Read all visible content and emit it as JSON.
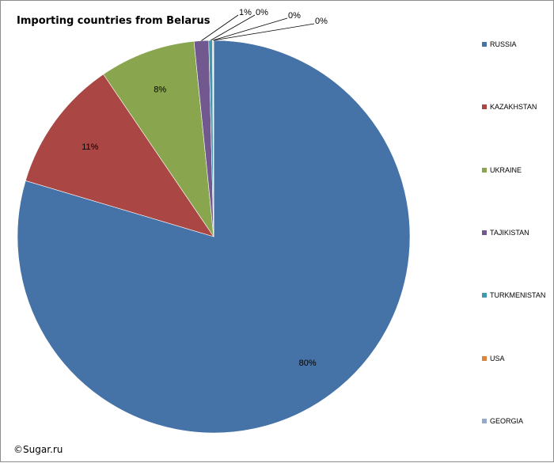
{
  "chart_data": {
    "type": "pie",
    "title": "Importing countries from Belarus",
    "slices": [
      {
        "name": "RUSSIA",
        "value": 79.6,
        "label": "80%",
        "color": "#4572A7"
      },
      {
        "name": "KAZAKHSTAN",
        "value": 10.9,
        "label": "11%",
        "color": "#AA4643"
      },
      {
        "name": "UKRAINE",
        "value": 7.9,
        "label": "8%",
        "color": "#89A54E"
      },
      {
        "name": "TAJIKISTAN",
        "value": 1.2,
        "label": "1%",
        "color": "#71588F"
      },
      {
        "name": "TURKMENISTAN",
        "value": 0.3,
        "label": "0%",
        "color": "#4198AF"
      },
      {
        "name": "USA",
        "value": 0.05,
        "label": "0%",
        "color": "#DB843D"
      },
      {
        "name": "GEORGIA",
        "value": 0.05,
        "label": "0%",
        "color": "#93A9CF"
      }
    ],
    "legend_position": "right"
  },
  "credit": "©Sugar.ru"
}
